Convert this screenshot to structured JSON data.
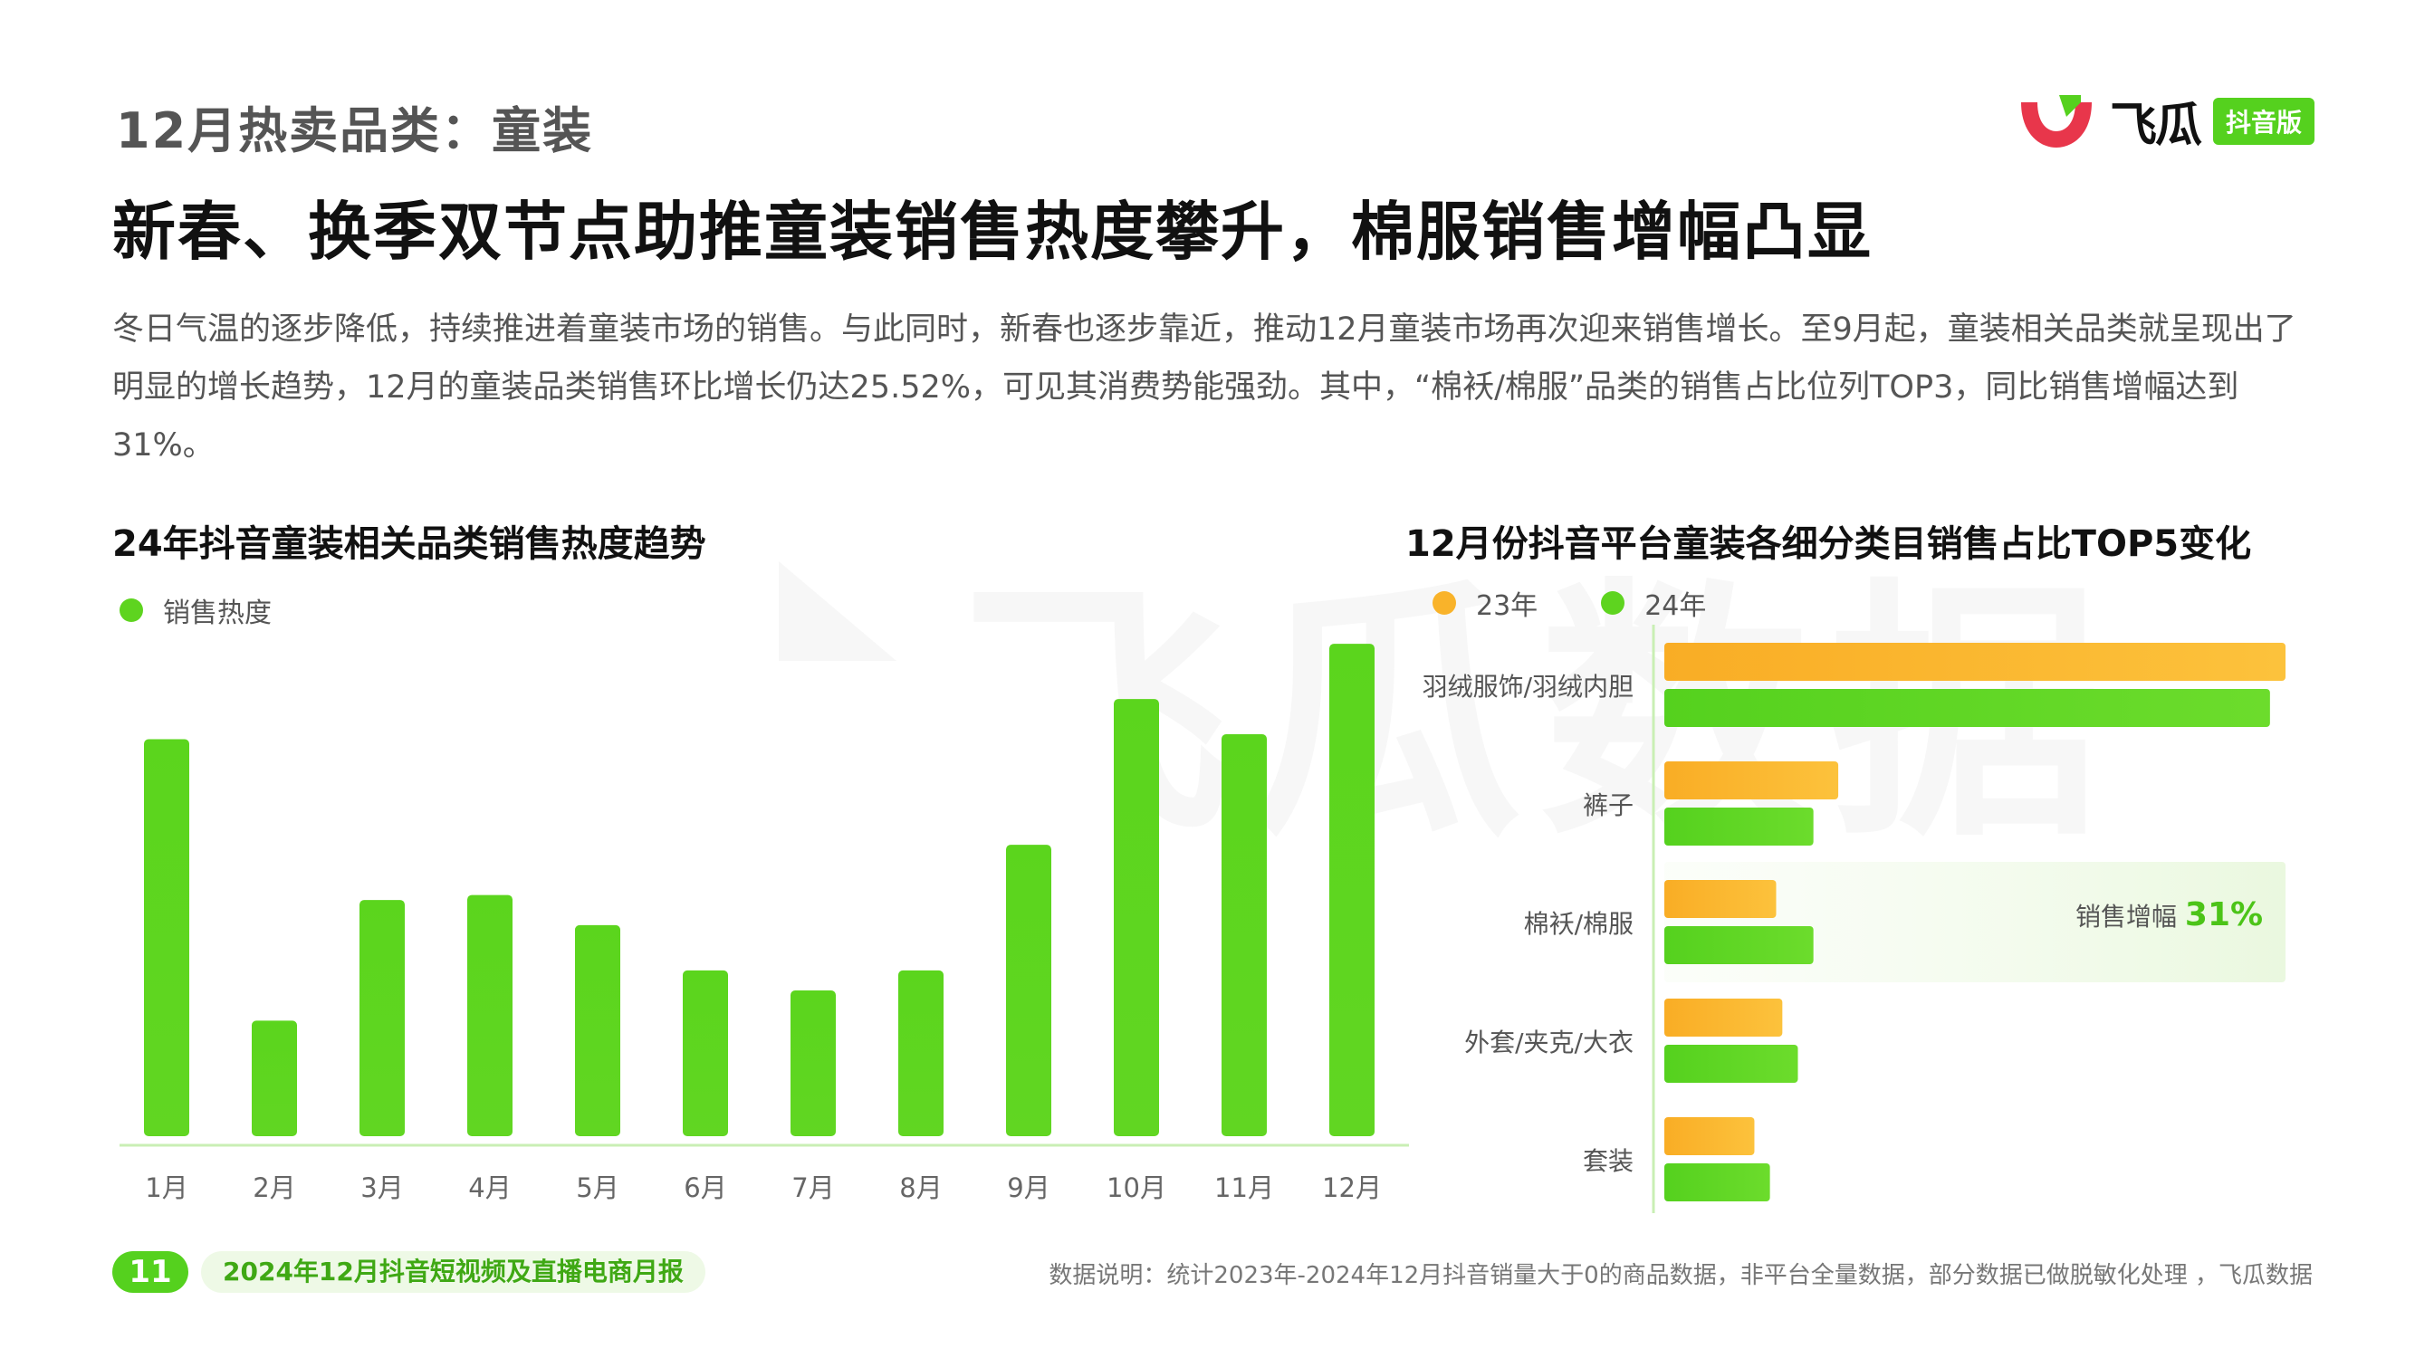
{
  "header": {
    "section_tag": "12月热卖品类：童装",
    "headline": "新春、换季双节点助推童装销售热度攀升，棉服销售增幅凸显"
  },
  "brand": {
    "name": "飞瓜",
    "badge": "抖音版",
    "colors": {
      "red": "#e8364b",
      "green": "#55d11e"
    }
  },
  "intro": "冬日气温的逐步降低，持续推进着童装市场的销售。与此同时，新春也逐步靠近，推动12月童装市场再次迎来销售增长。至9月起，童装相关品类就呈现出了明显的增长趋势，12月的童装品类销售环比增长仍达25.52%，可见其消费势能强劲。其中，“棉袄/棉服”品类的销售占比位列TOP3，同比销售增幅达到31%。",
  "watermark": "飞瓜数据",
  "left_chart": {
    "subtitle": "24年抖音童装相关品类销售热度趋势"
  },
  "right_chart": {
    "subtitle": "12月份抖音平台童装各细分类目销售占比TOP5变化",
    "highlight_label": "销售增幅",
    "highlight_value": "31%"
  },
  "chart_data": [
    {
      "type": "bar",
      "title": "24年抖音童装相关品类销售热度趋势",
      "categories": [
        "1月",
        "2月",
        "3月",
        "4月",
        "5月",
        "6月",
        "7月",
        "8月",
        "9月",
        "10月",
        "11月",
        "12月"
      ],
      "series": [
        {
          "name": "销售热度",
          "color": "#5ed41f",
          "values": [
            79,
            23,
            47,
            48,
            42,
            33,
            29,
            33,
            58,
            87,
            80,
            98
          ]
        }
      ],
      "ylim": [
        0,
        100
      ],
      "grid": false,
      "legend": "top-left"
    },
    {
      "type": "bar",
      "orientation": "horizontal",
      "title": "12月份抖音平台童装各细分类目销售占比TOP5变化",
      "categories": [
        "羽绒服饰/羽绒内胆",
        "裤子",
        "棉袄/棉服",
        "外套/夹克/大衣",
        "套装"
      ],
      "series": [
        {
          "name": "23年",
          "color": "#f9b32a",
          "values": [
            100,
            28,
            18,
            19,
            14.5
          ]
        },
        {
          "name": "24年",
          "color": "#5ed41f",
          "values": [
            97.5,
            24,
            24,
            21.5,
            17
          ]
        }
      ],
      "xlim": [
        0,
        100
      ],
      "grid": false,
      "legend": "top-left",
      "annotation": {
        "category": "棉袄/棉服",
        "text": "销售增幅 31%"
      }
    }
  ],
  "footer": {
    "page_number": "11",
    "report_name": "2024年12月抖音短视频及直播电商月报",
    "note": "数据说明：统计2023年-2024年12月抖音销量大于0的商品数据，非平台全量数据，部分数据已做脱敏化处理 ，飞瓜数据"
  }
}
